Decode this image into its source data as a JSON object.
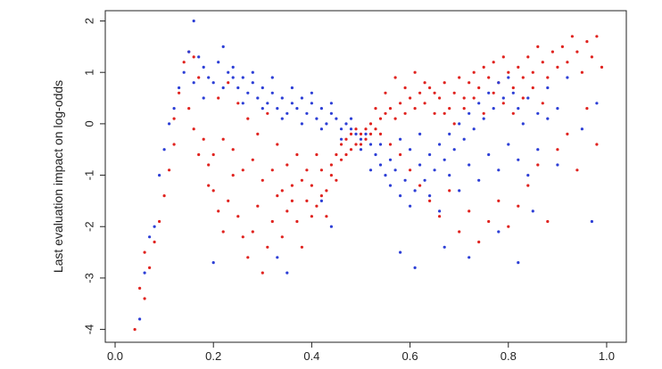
{
  "chart_data": {
    "type": "scatter",
    "ylabel": "Last evaluation impact on log-odds",
    "xlabel": "",
    "xlim": [
      -0.02,
      1.04
    ],
    "ylim": [
      -4.25,
      2.2
    ],
    "x_ticks": [
      0.0,
      0.2,
      0.4,
      0.6,
      0.8,
      1.0
    ],
    "x_tick_labels": [
      "0.0",
      "0.2",
      "0.4",
      "0.6",
      "0.8",
      "1.0"
    ],
    "y_ticks": [
      -4,
      -3,
      -2,
      -1,
      0,
      1,
      2
    ],
    "y_tick_labels": [
      "-4",
      "-3",
      "-2",
      "-1",
      "0",
      "1",
      "2"
    ],
    "grid": false,
    "legend": "none",
    "series": [
      {
        "color": "#e0231f",
        "points": [
          [
            0.04,
            -4.0
          ],
          [
            0.05,
            -3.2
          ],
          [
            0.06,
            -3.4
          ],
          [
            0.07,
            -2.8
          ],
          [
            0.06,
            -2.5
          ],
          [
            0.08,
            -2.3
          ],
          [
            0.09,
            -1.9
          ],
          [
            0.1,
            -1.4
          ],
          [
            0.11,
            -0.9
          ],
          [
            0.12,
            -0.4
          ],
          [
            0.12,
            0.1
          ],
          [
            0.13,
            0.6
          ],
          [
            0.14,
            1.2
          ],
          [
            0.15,
            1.4
          ],
          [
            0.16,
            1.3
          ],
          [
            0.17,
            0.9
          ],
          [
            0.18,
            -0.3
          ],
          [
            0.19,
            -0.8
          ],
          [
            0.2,
            -1.3
          ],
          [
            0.21,
            -1.7
          ],
          [
            0.22,
            -2.1
          ],
          [
            0.23,
            -1.5
          ],
          [
            0.24,
            -1.0
          ],
          [
            0.25,
            -1.8
          ],
          [
            0.26,
            -2.2
          ],
          [
            0.27,
            -2.6
          ],
          [
            0.28,
            -2.1
          ],
          [
            0.29,
            -1.6
          ],
          [
            0.3,
            -2.9
          ],
          [
            0.31,
            -2.4
          ],
          [
            0.32,
            -1.9
          ],
          [
            0.33,
            -1.4
          ],
          [
            0.34,
            -2.2
          ],
          [
            0.35,
            -1.7
          ],
          [
            0.36,
            -1.2
          ],
          [
            0.37,
            -1.9
          ],
          [
            0.38,
            -2.4
          ],
          [
            0.39,
            -1.5
          ],
          [
            0.4,
            -1.2
          ],
          [
            0.41,
            -1.6
          ],
          [
            0.42,
            -0.9
          ],
          [
            0.43,
            -1.3
          ],
          [
            0.44,
            -0.8
          ],
          [
            0.45,
            -0.6
          ],
          [
            0.46,
            -0.4
          ],
          [
            0.47,
            -0.3
          ],
          [
            0.48,
            -0.2
          ],
          [
            0.49,
            -0.1
          ],
          [
            0.5,
            -0.2
          ],
          [
            0.51,
            -0.3
          ],
          [
            0.52,
            -0.2
          ],
          [
            0.53,
            -0.1
          ],
          [
            0.54,
            0.1
          ],
          [
            0.55,
            0.2
          ],
          [
            0.56,
            0.3
          ],
          [
            0.57,
            0.1
          ],
          [
            0.58,
            0.4
          ],
          [
            0.59,
            0.2
          ],
          [
            0.6,
            0.5
          ],
          [
            0.61,
            0.3
          ],
          [
            0.62,
            0.6
          ],
          [
            0.63,
            0.4
          ],
          [
            0.64,
            0.7
          ],
          [
            0.65,
            0.2
          ],
          [
            0.66,
            0.5
          ],
          [
            0.67,
            0.8
          ],
          [
            0.68,
            0.3
          ],
          [
            0.69,
            0.6
          ],
          [
            0.7,
            0.9
          ],
          [
            0.71,
            0.5
          ],
          [
            0.72,
            0.8
          ],
          [
            0.73,
            1.0
          ],
          [
            0.74,
            0.7
          ],
          [
            0.75,
            1.1
          ],
          [
            0.76,
            0.9
          ],
          [
            0.77,
            1.2
          ],
          [
            0.78,
            0.8
          ],
          [
            0.79,
            1.3
          ],
          [
            0.8,
            1.0
          ],
          [
            0.81,
            0.7
          ],
          [
            0.82,
            1.1
          ],
          [
            0.83,
            0.9
          ],
          [
            0.84,
            1.3
          ],
          [
            0.85,
            1.0
          ],
          [
            0.86,
            1.5
          ],
          [
            0.87,
            1.2
          ],
          [
            0.88,
            0.9
          ],
          [
            0.89,
            1.4
          ],
          [
            0.9,
            1.1
          ],
          [
            0.91,
            1.5
          ],
          [
            0.92,
            1.2
          ],
          [
            0.93,
            1.7
          ],
          [
            0.94,
            1.4
          ],
          [
            0.95,
            1.0
          ],
          [
            0.96,
            1.6
          ],
          [
            0.97,
            1.3
          ],
          [
            0.98,
            1.7
          ],
          [
            0.99,
            1.1
          ],
          [
            0.2,
            -0.6
          ],
          [
            0.22,
            -0.3
          ],
          [
            0.24,
            -0.5
          ],
          [
            0.26,
            -0.9
          ],
          [
            0.28,
            -0.7
          ],
          [
            0.3,
            -1.1
          ],
          [
            0.32,
            -0.9
          ],
          [
            0.34,
            -1.3
          ],
          [
            0.36,
            -1.5
          ],
          [
            0.38,
            -1.1
          ],
          [
            0.4,
            -1.8
          ],
          [
            0.42,
            -1.4
          ],
          [
            0.44,
            -1.0
          ],
          [
            0.46,
            -0.7
          ],
          [
            0.48,
            -0.5
          ],
          [
            0.5,
            -0.4
          ],
          [
            0.52,
            0.0
          ],
          [
            0.54,
            -0.2
          ],
          [
            0.56,
            -0.4
          ],
          [
            0.58,
            -0.6
          ],
          [
            0.6,
            -0.9
          ],
          [
            0.62,
            -1.2
          ],
          [
            0.64,
            -1.5
          ],
          [
            0.66,
            -1.8
          ],
          [
            0.68,
            -1.3
          ],
          [
            0.7,
            -2.1
          ],
          [
            0.72,
            -1.7
          ],
          [
            0.74,
            -2.3
          ],
          [
            0.76,
            -1.9
          ],
          [
            0.78,
            -1.5
          ],
          [
            0.8,
            -2.0
          ],
          [
            0.82,
            -1.6
          ],
          [
            0.84,
            -1.2
          ],
          [
            0.86,
            -0.8
          ],
          [
            0.88,
            -1.9
          ],
          [
            0.9,
            -0.5
          ],
          [
            0.92,
            -0.2
          ],
          [
            0.94,
            -0.9
          ],
          [
            0.96,
            0.3
          ],
          [
            0.98,
            -0.4
          ],
          [
            0.15,
            0.3
          ],
          [
            0.16,
            -0.1
          ],
          [
            0.17,
            -0.6
          ],
          [
            0.19,
            -1.2
          ],
          [
            0.21,
            0.5
          ],
          [
            0.23,
            0.8
          ],
          [
            0.25,
            0.4
          ],
          [
            0.27,
            0.1
          ],
          [
            0.29,
            -0.2
          ],
          [
            0.31,
            0.2
          ],
          [
            0.33,
            -0.4
          ],
          [
            0.35,
            -0.8
          ],
          [
            0.37,
            -0.6
          ],
          [
            0.39,
            -0.9
          ],
          [
            0.41,
            -0.6
          ],
          [
            0.43,
            -1.8
          ],
          [
            0.45,
            -1.1
          ],
          [
            0.47,
            -0.6
          ],
          [
            0.49,
            -0.4
          ],
          [
            0.51,
            -0.1
          ],
          [
            0.53,
            0.3
          ],
          [
            0.55,
            0.6
          ],
          [
            0.57,
            0.9
          ],
          [
            0.59,
            0.7
          ],
          [
            0.61,
            1.0
          ],
          [
            0.63,
            0.8
          ],
          [
            0.65,
            0.6
          ],
          [
            0.67,
            0.2
          ],
          [
            0.69,
            0.0
          ],
          [
            0.71,
            0.3
          ],
          [
            0.73,
            0.5
          ],
          [
            0.75,
            0.2
          ],
          [
            0.77,
            0.6
          ],
          [
            0.79,
            0.4
          ],
          [
            0.81,
            0.2
          ],
          [
            0.83,
            0.5
          ],
          [
            0.85,
            0.7
          ],
          [
            0.87,
            0.4
          ]
        ]
      },
      {
        "color": "#2d3fd6",
        "points": [
          [
            0.05,
            -3.8
          ],
          [
            0.06,
            -2.9
          ],
          [
            0.07,
            -2.2
          ],
          [
            0.08,
            -2.0
          ],
          [
            0.09,
            -1.0
          ],
          [
            0.1,
            -0.5
          ],
          [
            0.11,
            0.0
          ],
          [
            0.12,
            0.3
          ],
          [
            0.13,
            0.7
          ],
          [
            0.14,
            1.0
          ],
          [
            0.15,
            1.4
          ],
          [
            0.16,
            2.0
          ],
          [
            0.17,
            1.3
          ],
          [
            0.18,
            1.1
          ],
          [
            0.19,
            0.9
          ],
          [
            0.2,
            0.8
          ],
          [
            0.21,
            1.2
          ],
          [
            0.22,
            1.5
          ],
          [
            0.23,
            1.0
          ],
          [
            0.24,
            0.9
          ],
          [
            0.25,
            0.7
          ],
          [
            0.26,
            0.9
          ],
          [
            0.27,
            0.6
          ],
          [
            0.28,
            0.8
          ],
          [
            0.29,
            0.5
          ],
          [
            0.3,
            0.7
          ],
          [
            0.31,
            0.4
          ],
          [
            0.32,
            0.6
          ],
          [
            0.33,
            0.3
          ],
          [
            0.34,
            0.5
          ],
          [
            0.35,
            0.2
          ],
          [
            0.36,
            0.4
          ],
          [
            0.37,
            0.3
          ],
          [
            0.38,
            0.5
          ],
          [
            0.39,
            0.2
          ],
          [
            0.4,
            0.4
          ],
          [
            0.41,
            0.1
          ],
          [
            0.42,
            0.3
          ],
          [
            0.43,
            0.0
          ],
          [
            0.44,
            0.2
          ],
          [
            0.45,
            0.1
          ],
          [
            0.46,
            -0.1
          ],
          [
            0.47,
            0.0
          ],
          [
            0.48,
            -0.1
          ],
          [
            0.49,
            -0.2
          ],
          [
            0.5,
            -0.3
          ],
          [
            0.51,
            -0.2
          ],
          [
            0.52,
            -0.4
          ],
          [
            0.53,
            -0.6
          ],
          [
            0.54,
            -0.8
          ],
          [
            0.55,
            -1.0
          ],
          [
            0.56,
            -1.2
          ],
          [
            0.57,
            -0.9
          ],
          [
            0.58,
            -1.4
          ],
          [
            0.59,
            -1.1
          ],
          [
            0.6,
            -1.6
          ],
          [
            0.61,
            -1.3
          ],
          [
            0.62,
            -0.8
          ],
          [
            0.63,
            -1.1
          ],
          [
            0.64,
            -0.6
          ],
          [
            0.65,
            -0.9
          ],
          [
            0.66,
            -0.4
          ],
          [
            0.67,
            -0.7
          ],
          [
            0.68,
            -0.2
          ],
          [
            0.69,
            -0.5
          ],
          [
            0.7,
            0.0
          ],
          [
            0.71,
            -0.3
          ],
          [
            0.72,
            0.2
          ],
          [
            0.73,
            -0.1
          ],
          [
            0.74,
            0.4
          ],
          [
            0.75,
            0.1
          ],
          [
            0.76,
            0.6
          ],
          [
            0.77,
            0.3
          ],
          [
            0.78,
            0.8
          ],
          [
            0.79,
            0.5
          ],
          [
            0.8,
            0.9
          ],
          [
            0.81,
            0.6
          ],
          [
            0.82,
            0.3
          ],
          [
            0.83,
            0.0
          ],
          [
            0.84,
            0.5
          ],
          [
            0.86,
            0.2
          ],
          [
            0.88,
            0.7
          ],
          [
            0.9,
            0.3
          ],
          [
            0.92,
            0.9
          ],
          [
            0.95,
            -0.1
          ],
          [
            0.97,
            -1.9
          ],
          [
            0.98,
            0.4
          ],
          [
            0.2,
            -2.7
          ],
          [
            0.33,
            -2.6
          ],
          [
            0.35,
            -2.9
          ],
          [
            0.42,
            -1.5
          ],
          [
            0.44,
            -2.0
          ],
          [
            0.58,
            -2.5
          ],
          [
            0.61,
            -2.8
          ],
          [
            0.67,
            -2.4
          ],
          [
            0.72,
            -2.6
          ],
          [
            0.78,
            -2.1
          ],
          [
            0.82,
            -2.7
          ],
          [
            0.85,
            -1.7
          ],
          [
            0.16,
            0.8
          ],
          [
            0.18,
            0.5
          ],
          [
            0.22,
            0.7
          ],
          [
            0.24,
            1.1
          ],
          [
            0.26,
            0.4
          ],
          [
            0.28,
            1.0
          ],
          [
            0.3,
            0.3
          ],
          [
            0.32,
            0.9
          ],
          [
            0.34,
            0.1
          ],
          [
            0.36,
            0.7
          ],
          [
            0.38,
            0.0
          ],
          [
            0.4,
            0.6
          ],
          [
            0.42,
            -0.1
          ],
          [
            0.44,
            0.4
          ],
          [
            0.46,
            -0.3
          ],
          [
            0.48,
            0.1
          ],
          [
            0.5,
            -0.5
          ],
          [
            0.52,
            -0.9
          ],
          [
            0.54,
            -0.4
          ],
          [
            0.56,
            -0.7
          ],
          [
            0.58,
            -0.3
          ],
          [
            0.6,
            -0.5
          ],
          [
            0.62,
            -0.2
          ],
          [
            0.64,
            -1.4
          ],
          [
            0.66,
            -1.7
          ],
          [
            0.68,
            -1.0
          ],
          [
            0.7,
            -1.3
          ],
          [
            0.72,
            -0.8
          ],
          [
            0.74,
            -1.1
          ],
          [
            0.76,
            -0.6
          ],
          [
            0.78,
            -0.9
          ],
          [
            0.8,
            -0.4
          ],
          [
            0.82,
            -0.7
          ],
          [
            0.84,
            -1.0
          ],
          [
            0.86,
            -0.5
          ],
          [
            0.88,
            0.1
          ],
          [
            0.9,
            -0.8
          ]
        ]
      }
    ]
  }
}
